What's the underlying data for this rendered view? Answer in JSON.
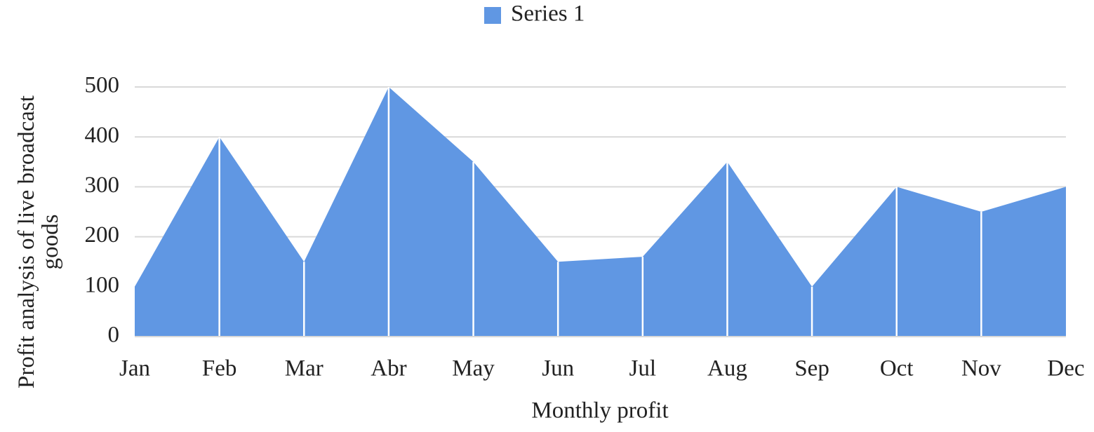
{
  "chart_data": {
    "type": "area",
    "x_label": "Monthly profit",
    "y_label": "Profit analysis of live broadcast goods",
    "categories": [
      "Jan",
      "Feb",
      "Mar",
      "Abr",
      "May",
      "Jun",
      "Jul",
      "Aug",
      "Sep",
      "Oct",
      "Nov",
      "Dec"
    ],
    "series": [
      {
        "name": "Series 1",
        "color": "#6097e3",
        "values": [
          100,
          400,
          150,
          500,
          350,
          150,
          160,
          350,
          100,
          300,
          250,
          300
        ]
      }
    ],
    "ylim": [
      0,
      500
    ],
    "yticks": [
      0,
      100,
      200,
      300,
      400,
      500
    ],
    "grid": true,
    "legend": "top"
  }
}
